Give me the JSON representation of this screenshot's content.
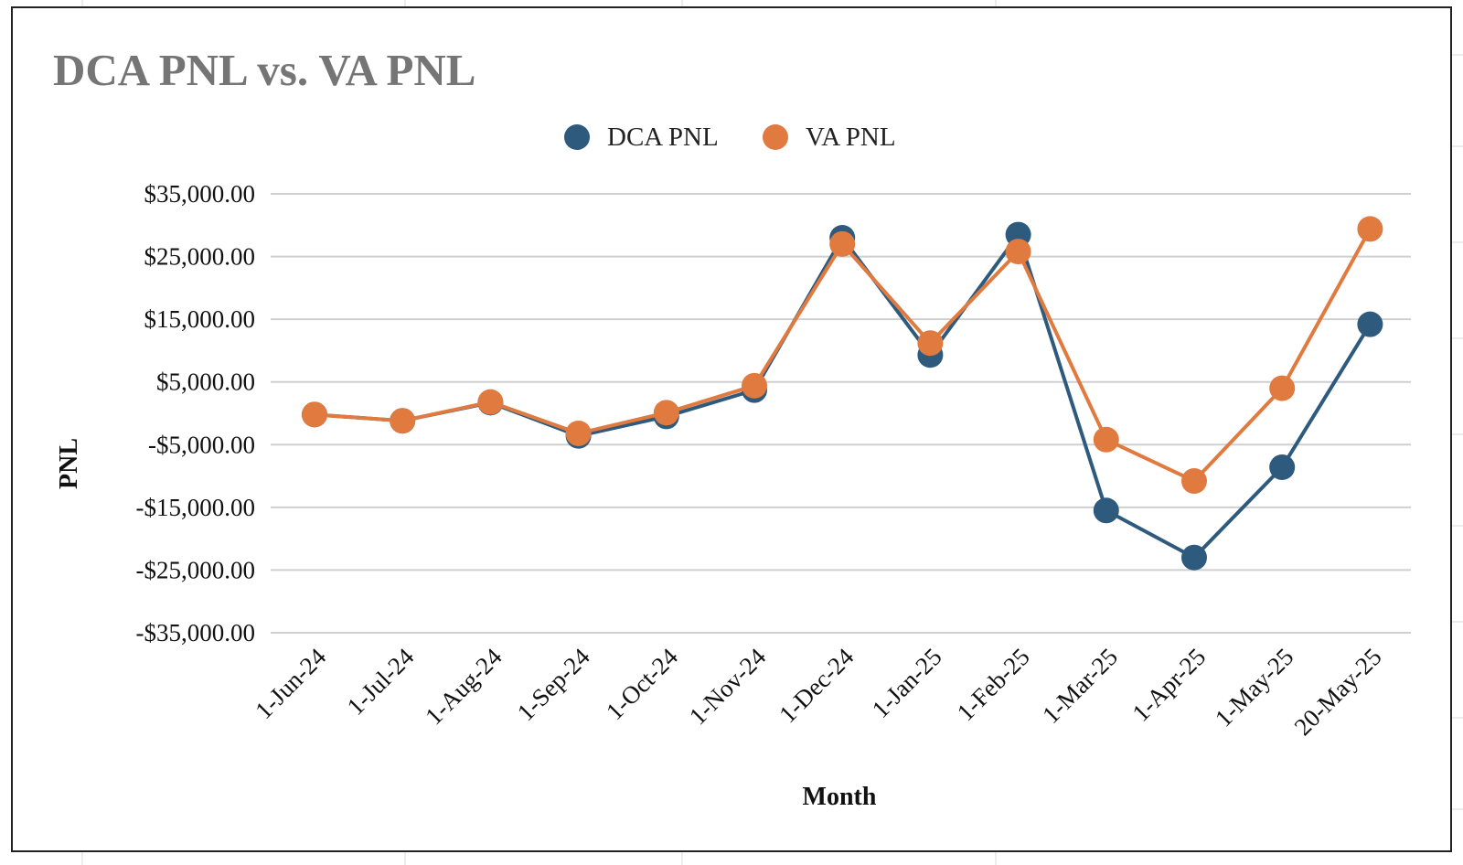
{
  "chart_data": {
    "type": "line",
    "title": "DCA PNL vs. VA PNL",
    "xlabel": "Month",
    "ylabel": "PNL",
    "categories": [
      "1-Jun-24",
      "1-Jul-24",
      "1-Aug-24",
      "1-Sep-24",
      "1-Oct-24",
      "1-Nov-24",
      "1-Dec-24",
      "1-Jan-25",
      "1-Feb-25",
      "1-Mar-25",
      "1-Apr-25",
      "1-May-25",
      "20-May-25"
    ],
    "y_ticks": [
      35000,
      25000,
      15000,
      5000,
      -5000,
      -15000,
      -25000,
      -35000
    ],
    "y_tick_labels": [
      "$35,000.00",
      "$25,000.00",
      "$15,000.00",
      "$5,000.00",
      "-$5,000.00",
      "-$15,000.00",
      "-$25,000.00",
      "-$35,000.00"
    ],
    "ylim": [
      -35000,
      35000
    ],
    "grid": true,
    "legend_position": "top-center",
    "series": [
      {
        "name": "DCA PNL",
        "color": "#2e5a7e",
        "values": [
          -200,
          -1200,
          1700,
          -3600,
          -500,
          3700,
          28000,
          9300,
          28500,
          -15500,
          -23000,
          -8600,
          14200
        ]
      },
      {
        "name": "VA PNL",
        "color": "#e07a3f",
        "values": [
          -200,
          -1200,
          1800,
          -3200,
          100,
          4400,
          27000,
          11200,
          25800,
          -4200,
          -10800,
          4000,
          29400
        ]
      }
    ]
  }
}
